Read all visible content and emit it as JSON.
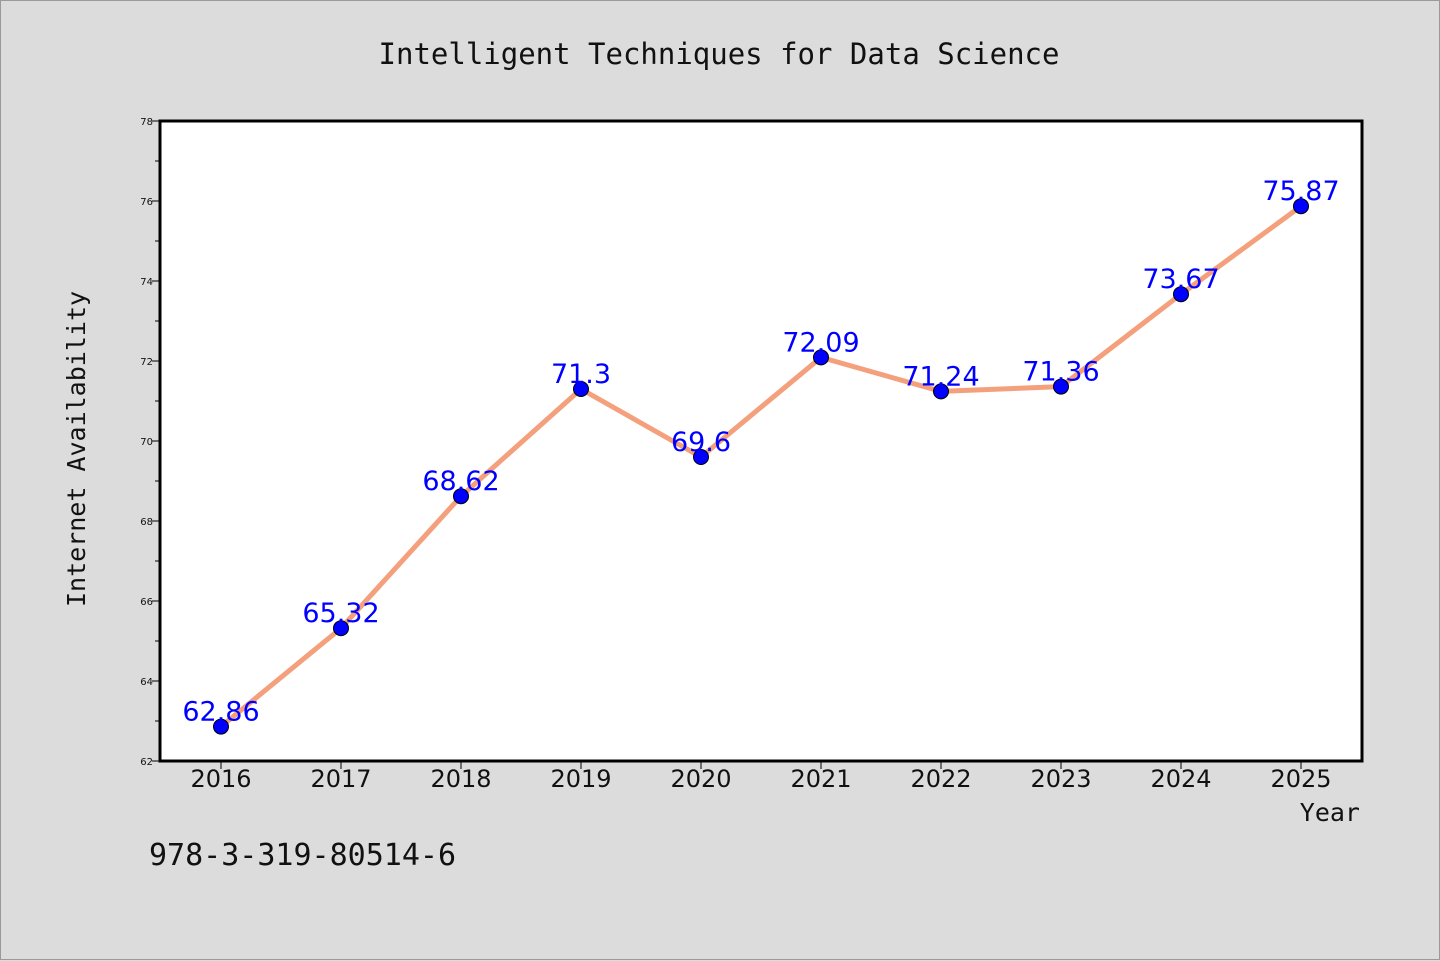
{
  "chart_data": {
    "type": "line",
    "title": "Intelligent Techniques for Data Science",
    "xlabel": "Year",
    "ylabel": "Internet Availability",
    "categories": [
      "2016",
      "2017",
      "2018",
      "2019",
      "2020",
      "2021",
      "2022",
      "2023",
      "2024",
      "2025"
    ],
    "series": [
      {
        "values": [
          62.86,
          65.32,
          68.62,
          71.3,
          69.6,
          72.09,
          71.24,
          71.36,
          73.67,
          75.87
        ],
        "data_labels": [
          "62.86",
          "65.32",
          "68.62",
          "71.3",
          "69.6",
          "72.09",
          "71.24",
          "71.36",
          "73.67",
          "75.87"
        ],
        "line_color": "#f4a07c",
        "marker_color": "#0000ff"
      }
    ],
    "ylim": [
      62,
      78
    ],
    "yticks": [
      "62",
      "64",
      "66",
      "68",
      "70",
      "72",
      "74",
      "76",
      "78"
    ],
    "grid": false,
    "legend": "none"
  },
  "footer": {
    "isbn": "978-3-319-80514-6"
  },
  "colors": {
    "background": "#dcdcdc",
    "plot_area": "#ffffff",
    "line": "#f4a07c",
    "marker": "#0000ff",
    "data_label": "#0000ff"
  }
}
